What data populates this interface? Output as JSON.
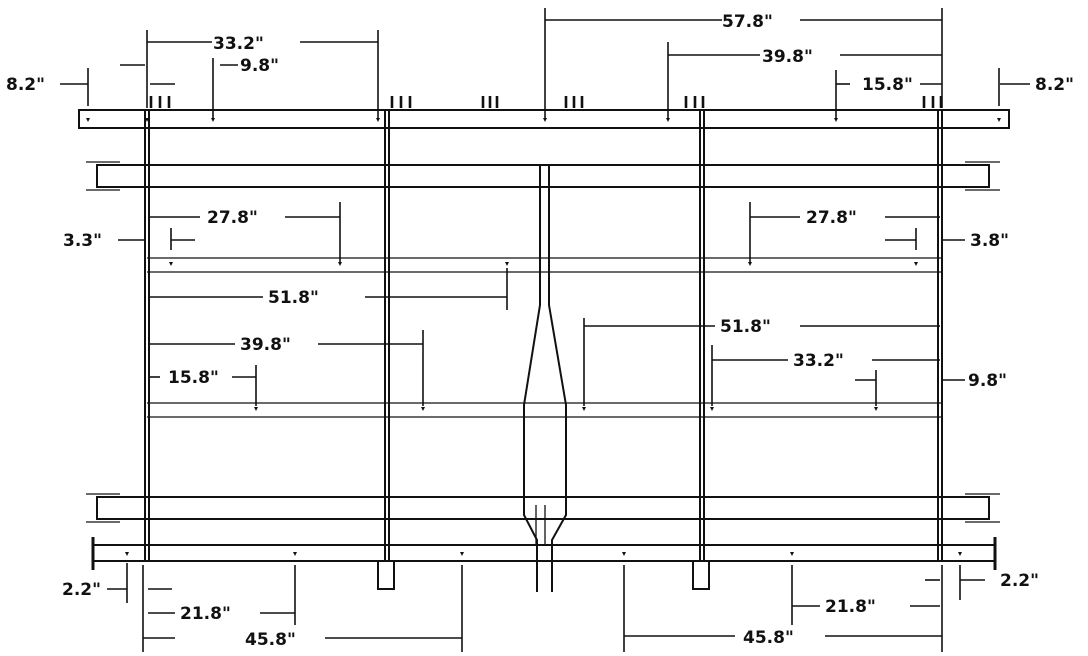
{
  "dimensions": {
    "top_left_33_2": "33.2\"",
    "top_left_9_8": "9.8\"",
    "top_left_8_2": "8.2\"",
    "top_right_57_8": "57.8\"",
    "top_right_39_8": "39.8\"",
    "top_right_15_8": "15.8\"",
    "top_right_8_2": "8.2\"",
    "mid_left_27_8": "27.8\"",
    "mid_left_3_3": "3.3\"",
    "mid_left_51_8": "51.8\"",
    "mid_left_39_8": "39.8\"",
    "mid_left_15_8": "15.8\"",
    "mid_right_27_8": "27.8\"",
    "mid_right_3_8": "3.8\"",
    "mid_right_51_8": "51.8\"",
    "mid_right_33_2": "33.2\"",
    "mid_right_9_8": "9.8\"",
    "bot_left_2_2": "2.2\"",
    "bot_left_21_8": "21.8\"",
    "bot_left_45_8": "45.8\"",
    "bot_right_2_2": "2.2\"",
    "bot_right_21_8": "21.8\"",
    "bot_right_45_8": "45.8\""
  }
}
